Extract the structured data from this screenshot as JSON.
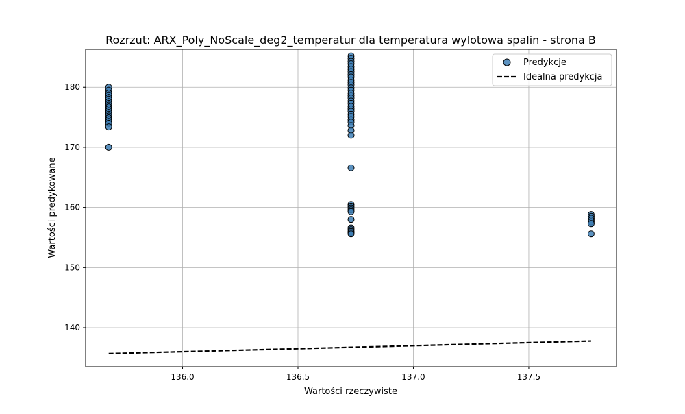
{
  "chart_data": {
    "type": "scatter",
    "title": "Rozrzut: ARX_Poly_NoScale_deg2_temperatur dla temperatura wylotowa spalin - strona B",
    "xlabel": "Wartości rzeczywiste",
    "ylabel": "Wartości predykowane",
    "xlim": [
      135.58,
      137.88
    ],
    "ylim": [
      133.5,
      186.3
    ],
    "xticks": [
      136.0,
      136.5,
      137.0,
      137.5
    ],
    "xtick_labels": [
      "136.0",
      "136.5",
      "137.0",
      "137.5"
    ],
    "yticks": [
      140,
      150,
      160,
      170,
      180
    ],
    "ytick_labels": [
      "140",
      "150",
      "160",
      "170",
      "180"
    ],
    "grid": true,
    "legend_position": "top-right",
    "colors": {
      "points": "#3f7fb5",
      "point_edge": "#000000",
      "ideal_line": "#000000",
      "grid": "#b0b0b0"
    },
    "series": [
      {
        "name": "Predykcje",
        "kind": "scatter",
        "points": [
          [
            135.68,
            180.0
          ],
          [
            135.68,
            179.5
          ],
          [
            135.68,
            179.0
          ],
          [
            135.68,
            178.7
          ],
          [
            135.68,
            178.3
          ],
          [
            135.68,
            178.0
          ],
          [
            135.68,
            177.6
          ],
          [
            135.68,
            177.3
          ],
          [
            135.68,
            177.0
          ],
          [
            135.68,
            176.7
          ],
          [
            135.68,
            176.4
          ],
          [
            135.68,
            176.1
          ],
          [
            135.68,
            175.8
          ],
          [
            135.68,
            175.5
          ],
          [
            135.68,
            175.2
          ],
          [
            135.68,
            174.9
          ],
          [
            135.68,
            174.6
          ],
          [
            135.68,
            174.3
          ],
          [
            135.68,
            174.0
          ],
          [
            135.68,
            173.4
          ],
          [
            135.68,
            170.0
          ],
          [
            136.73,
            185.2
          ],
          [
            136.73,
            184.8
          ],
          [
            136.73,
            184.3
          ],
          [
            136.73,
            183.9
          ],
          [
            136.73,
            183.4
          ],
          [
            136.73,
            183.0
          ],
          [
            136.73,
            182.6
          ],
          [
            136.73,
            182.1
          ],
          [
            136.73,
            181.7
          ],
          [
            136.73,
            181.2
          ],
          [
            136.73,
            180.8
          ],
          [
            136.73,
            180.4
          ],
          [
            136.73,
            179.9
          ],
          [
            136.73,
            179.5
          ],
          [
            136.73,
            179.0
          ],
          [
            136.73,
            178.6
          ],
          [
            136.73,
            178.2
          ],
          [
            136.73,
            177.7
          ],
          [
            136.73,
            177.3
          ],
          [
            136.73,
            176.8
          ],
          [
            136.73,
            176.4
          ],
          [
            136.73,
            176.0
          ],
          [
            136.73,
            175.5
          ],
          [
            136.73,
            175.1
          ],
          [
            136.73,
            174.6
          ],
          [
            136.73,
            174.2
          ],
          [
            136.73,
            173.6
          ],
          [
            136.73,
            172.8
          ],
          [
            136.73,
            172.0
          ],
          [
            136.73,
            166.6
          ],
          [
            136.73,
            160.5
          ],
          [
            136.73,
            160.2
          ],
          [
            136.73,
            159.9
          ],
          [
            136.73,
            159.6
          ],
          [
            136.73,
            159.3
          ],
          [
            136.73,
            158.0
          ],
          [
            136.73,
            156.6
          ],
          [
            136.73,
            156.3
          ],
          [
            136.73,
            156.0
          ],
          [
            136.73,
            155.8
          ],
          [
            136.73,
            155.6
          ],
          [
            137.77,
            158.8
          ],
          [
            137.77,
            158.5
          ],
          [
            137.77,
            158.2
          ],
          [
            137.77,
            157.9
          ],
          [
            137.77,
            157.6
          ],
          [
            137.77,
            157.3
          ],
          [
            137.77,
            155.6
          ]
        ]
      },
      {
        "name": "Idealna predykcja",
        "kind": "line",
        "style": "dashed",
        "points": [
          [
            135.68,
            135.68
          ],
          [
            137.77,
            137.77
          ]
        ]
      }
    ]
  }
}
